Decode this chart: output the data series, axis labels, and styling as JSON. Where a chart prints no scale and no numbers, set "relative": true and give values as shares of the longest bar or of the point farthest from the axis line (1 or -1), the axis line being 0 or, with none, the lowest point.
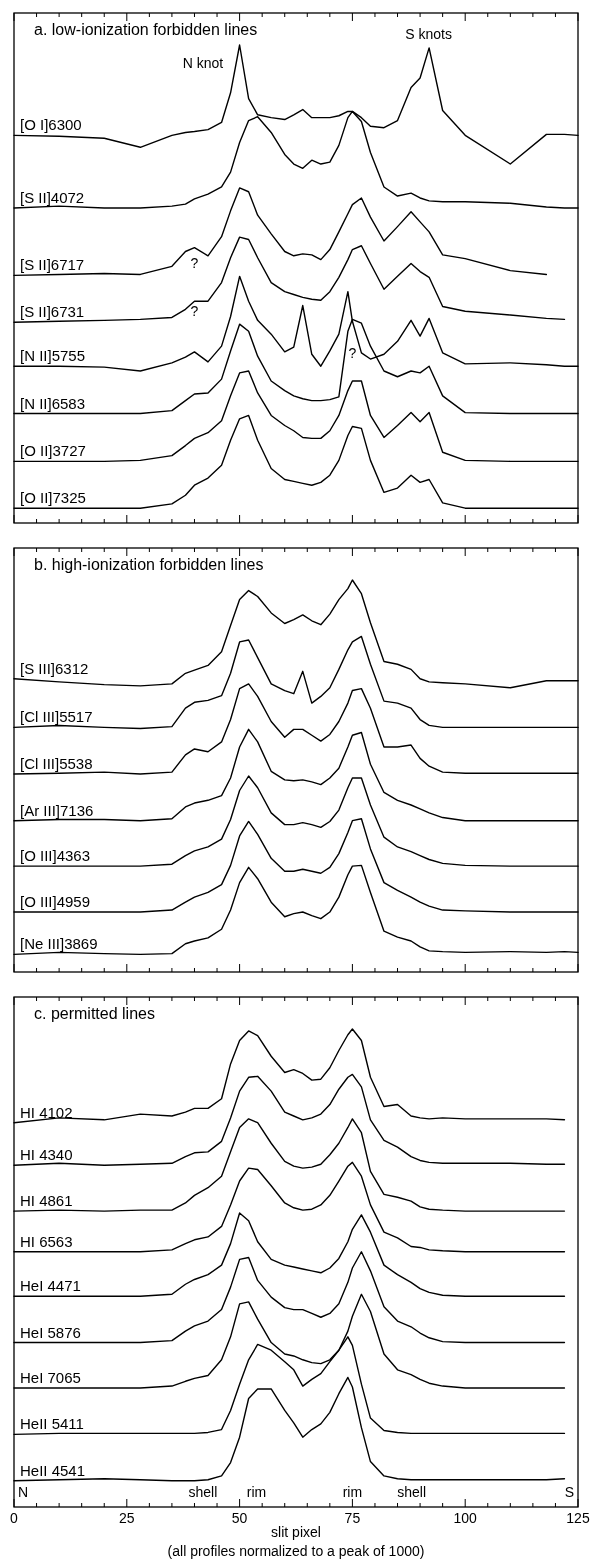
{
  "chart_data": [
    {
      "type": "line",
      "title": "a. low-ionization forbidden lines",
      "relative": true,
      "xlim": [
        0,
        125
      ],
      "xticks": [
        0,
        {
          "value": 5,
          "label": null
        },
        {
          "value": 10,
          "label": null
        },
        {
          "value": 15,
          "label": null
        },
        {
          "value": 20,
          "label": null
        },
        25,
        {
          "value": 30,
          "label": null
        },
        {
          "value": 35,
          "label": null
        },
        {
          "value": 40,
          "label": null
        },
        {
          "value": 45,
          "label": null
        },
        50,
        {
          "value": 55,
          "label": null
        },
        {
          "value": 60,
          "label": null
        },
        {
          "value": 65,
          "label": null
        },
        {
          "value": 70,
          "label": null
        },
        75,
        {
          "value": 80,
          "label": null
        },
        {
          "value": 85,
          "label": null
        },
        {
          "value": 90,
          "label": null
        },
        {
          "value": 95,
          "label": null
        },
        100,
        {
          "value": 105,
          "label": null
        },
        {
          "value": 110,
          "label": null
        },
        {
          "value": 115,
          "label": null
        },
        {
          "value": 120,
          "label": null
        },
        125
      ],
      "tick_labels": false,
      "x": [
        0,
        10,
        20,
        28,
        35,
        38,
        40,
        43,
        46,
        48,
        50,
        52,
        54,
        57,
        60,
        62,
        64,
        66,
        68,
        70,
        72,
        74,
        75,
        77,
        79,
        82,
        85,
        88,
        90,
        92,
        95,
        100,
        110,
        118,
        122,
        125
      ],
      "series": [
        {
          "name": "[O I]6300",
          "color": "#000000",
          "values": [
            0.811,
            0.809,
            0.805,
            0.786,
            0.811,
            0.817,
            0.819,
            0.823,
            0.838,
            0.9,
            1,
            0.888,
            0.854,
            0.848,
            0.844,
            0.854,
            0.865,
            0.848,
            0.848,
            0.848,
            0.852,
            0.861,
            0.861,
            0.848,
            0.83,
            0.827,
            0.842,
            0.911,
            0.931,
            0.994,
            0.863,
            0.811,
            0.751,
            0.813,
            0.813,
            0.811
          ]
        },
        {
          "name": "[S II]4072",
          "color": "#000000",
          "values": [
            0.659,
            0.663,
            0.659,
            0.659,
            0.663,
            0.667,
            0.678,
            0.688,
            0.703,
            0.734,
            0.796,
            0.842,
            0.85,
            0.817,
            0.771,
            0.751,
            0.742,
            0.759,
            0.751,
            0.755,
            0.79,
            0.848,
            0.861,
            0.84,
            0.775,
            0.703,
            0.684,
            0.69,
            0.68,
            0.674,
            0.672,
            0.672,
            0.669,
            0.661,
            0.659,
            0.659
          ]
        },
        {
          "name": "[S II]6717",
          "color": "#000000",
          "values": [
            0.518,
            0.52,
            0.522,
            0.52,
            0.537,
            0.568,
            0.576,
            0.559,
            0.599,
            0.653,
            0.701,
            0.693,
            0.644,
            0.605,
            0.568,
            0.559,
            0.563,
            0.561,
            0.551,
            0.572,
            0.609,
            0.647,
            0.666,
            0.68,
            0.64,
            0.59,
            0.62,
            0.651,
            0.63,
            0.609,
            0.561,
            0.553,
            0.528,
            0.52,
            null,
            null
          ]
        },
        {
          "name": "[S II]6731",
          "color": "#000000",
          "values": [
            0.42,
            0.422,
            0.424,
            0.426,
            0.43,
            0.447,
            0.464,
            0.464,
            0.503,
            0.555,
            0.598,
            0.593,
            0.555,
            0.503,
            0.484,
            0.478,
            0.472,
            0.468,
            0.466,
            0.484,
            0.514,
            0.551,
            0.572,
            0.58,
            0.543,
            0.489,
            0.516,
            0.543,
            0.526,
            0.514,
            0.453,
            0.443,
            0.435,
            0.428,
            0.426,
            null
          ]
        },
        {
          "name": "[N II]5755",
          "color": "#000000",
          "values": [
            0.328,
            0.328,
            0.326,
            0.318,
            0.335,
            0.347,
            0.358,
            0.337,
            0.37,
            0.432,
            0.516,
            0.464,
            0.424,
            0.395,
            0.358,
            0.368,
            0.455,
            0.353,
            0.328,
            0.36,
            0.395,
            0.484,
            0.422,
            0.356,
            0.343,
            0.353,
            0.38,
            0.424,
            0.391,
            0.428,
            0.356,
            0.333,
            0.335,
            0.331,
            0.328,
            0.328
          ]
        },
        {
          "name": "[N II]6583",
          "color": "#000000",
          "values": [
            0.229,
            0.229,
            0.229,
            0.229,
            0.235,
            0.256,
            0.27,
            0.272,
            0.301,
            0.36,
            0.416,
            0.401,
            0.349,
            0.297,
            0.277,
            0.266,
            0.26,
            0.256,
            0.256,
            0.258,
            0.264,
            0.401,
            0.426,
            0.418,
            0.37,
            0.318,
            0.306,
            0.318,
            0.314,
            0.328,
            0.266,
            0.231,
            0.229,
            0.229,
            0.229,
            0.229
          ]
        },
        {
          "name": "[O II]3727",
          "color": "#000000",
          "values": [
            0.129,
            0.129,
            0.129,
            0.131,
            0.141,
            0.162,
            0.177,
            0.189,
            0.214,
            0.266,
            0.314,
            0.318,
            0.272,
            0.225,
            0.204,
            0.193,
            0.179,
            0.177,
            0.177,
            0.193,
            0.225,
            0.277,
            0.297,
            0.297,
            0.225,
            0.179,
            0.204,
            0.231,
            0.212,
            0.231,
            0.148,
            0.131,
            0.129,
            0.129,
            0.129,
            0.129
          ]
        },
        {
          "name": "[O II]7325",
          "color": "#000000",
          "values": [
            0.031,
            0.031,
            0.031,
            0.031,
            0.04,
            0.058,
            0.079,
            0.094,
            0.121,
            0.173,
            0.218,
            0.225,
            0.173,
            0.114,
            0.091,
            0.087,
            0.083,
            0.079,
            0.085,
            0.1,
            0.131,
            0.183,
            0.202,
            0.198,
            0.131,
            0.064,
            0.073,
            0.1,
            0.085,
            0.091,
            0.042,
            0.031,
            0.031,
            0.031,
            0.031,
            0.031
          ]
        }
      ],
      "annotations": [
        "N knot",
        "S knots",
        "?",
        "?",
        "?"
      ]
    },
    {
      "type": "line",
      "title": "b. high-ionization forbidden lines",
      "relative": true,
      "xlim": [
        0,
        125
      ],
      "xticks": [
        0,
        {
          "value": 5,
          "label": null
        },
        {
          "value": 10,
          "label": null
        },
        {
          "value": 15,
          "label": null
        },
        {
          "value": 20,
          "label": null
        },
        25,
        {
          "value": 30,
          "label": null
        },
        {
          "value": 35,
          "label": null
        },
        {
          "value": 40,
          "label": null
        },
        {
          "value": 45,
          "label": null
        },
        50,
        {
          "value": 55,
          "label": null
        },
        {
          "value": 60,
          "label": null
        },
        {
          "value": 65,
          "label": null
        },
        {
          "value": 70,
          "label": null
        },
        75,
        {
          "value": 80,
          "label": null
        },
        {
          "value": 85,
          "label": null
        },
        {
          "value": 90,
          "label": null
        },
        {
          "value": 95,
          "label": null
        },
        100,
        {
          "value": 105,
          "label": null
        },
        {
          "value": 110,
          "label": null
        },
        {
          "value": 115,
          "label": null
        },
        {
          "value": 120,
          "label": null
        },
        125
      ],
      "tick_labels": false,
      "x": [
        0,
        10,
        20,
        28,
        35,
        38,
        40,
        43,
        46,
        48,
        50,
        52,
        54,
        57,
        60,
        62,
        64,
        66,
        68,
        70,
        72,
        74,
        75,
        77,
        79,
        82,
        85,
        88,
        90,
        92,
        95,
        100,
        110,
        118,
        122,
        125
      ],
      "series": [
        {
          "name": "[S III]6312",
          "color": "#000000",
          "values": [
            0.748,
            0.74,
            0.733,
            0.73,
            0.735,
            0.762,
            0.77,
            0.782,
            0.817,
            0.884,
            0.95,
            0.973,
            0.958,
            0.916,
            0.889,
            0.899,
            0.911,
            0.896,
            0.886,
            0.913,
            0.95,
            0.978,
            1,
            0.965,
            0.891,
            0.792,
            0.785,
            0.772,
            0.748,
            0.74,
            0.738,
            0.735,
            0.725,
            0.743,
            0.743,
            0.743
          ]
        },
        {
          "name": "[Cl III]5517",
          "color": "#000000",
          "values": [
            0.624,
            0.629,
            0.624,
            0.621,
            0.626,
            0.673,
            0.688,
            0.693,
            0.705,
            0.762,
            0.842,
            0.847,
            0.802,
            0.735,
            0.718,
            0.71,
            0.767,
            0.686,
            0.703,
            0.725,
            0.772,
            0.822,
            0.842,
            0.856,
            0.785,
            0.691,
            0.686,
            0.673,
            0.644,
            0.629,
            0.624,
            0.624,
            0.624,
            0.624,
            0.624,
            0.624
          ]
        },
        {
          "name": "[Cl III]5538",
          "color": "#000000",
          "values": [
            0.505,
            0.507,
            0.51,
            0.505,
            0.51,
            0.554,
            0.569,
            0.562,
            0.587,
            0.644,
            0.723,
            0.735,
            0.703,
            0.639,
            0.599,
            0.619,
            0.619,
            0.604,
            0.589,
            0.606,
            0.639,
            0.686,
            0.718,
            0.723,
            0.673,
            0.574,
            0.574,
            0.579,
            0.545,
            0.525,
            0.51,
            0.507,
            0.507,
            0.507,
            0.507,
            0.507
          ]
        },
        {
          "name": "[Ar III]7136",
          "color": "#000000",
          "values": [
            0.386,
            0.389,
            0.389,
            0.386,
            0.391,
            0.421,
            0.431,
            0.438,
            0.45,
            0.495,
            0.574,
            0.619,
            0.587,
            0.512,
            0.49,
            0.488,
            0.49,
            0.485,
            0.478,
            0.495,
            0.52,
            0.574,
            0.604,
            0.611,
            0.53,
            0.458,
            0.438,
            0.426,
            0.416,
            0.406,
            0.394,
            0.386,
            0.386,
            0.386,
            0.386,
            0.386
          ]
        },
        {
          "name": "[O III]4363",
          "color": "#000000",
          "values": [
            0.27,
            0.27,
            0.27,
            0.27,
            0.275,
            0.297,
            0.309,
            0.319,
            0.339,
            0.389,
            0.463,
            0.5,
            0.47,
            0.406,
            0.376,
            0.376,
            0.381,
            0.376,
            0.369,
            0.384,
            0.413,
            0.47,
            0.495,
            0.495,
            0.426,
            0.344,
            0.319,
            0.307,
            0.297,
            0.287,
            0.277,
            0.272,
            0.27,
            0.27,
            0.27,
            0.27
          ]
        },
        {
          "name": "[O III]4959",
          "color": "#000000",
          "values": [
            0.153,
            0.153,
            0.153,
            0.153,
            0.158,
            0.178,
            0.191,
            0.203,
            0.223,
            0.272,
            0.347,
            0.384,
            0.351,
            0.29,
            0.257,
            0.257,
            0.262,
            0.257,
            0.252,
            0.267,
            0.302,
            0.356,
            0.386,
            0.391,
            0.314,
            0.228,
            0.208,
            0.191,
            0.178,
            0.168,
            0.158,
            0.156,
            0.153,
            0.153,
            0.153,
            0.153
          ]
        },
        {
          "name": "[Ne III]3869",
          "color": "#000000",
          "values": [
            0.045,
            0.05,
            0.047,
            0.045,
            0.047,
            0.072,
            0.079,
            0.087,
            0.109,
            0.158,
            0.228,
            0.267,
            0.238,
            0.178,
            0.141,
            0.149,
            0.153,
            0.144,
            0.136,
            0.153,
            0.191,
            0.248,
            0.27,
            0.272,
            0.203,
            0.104,
            0.089,
            0.079,
            0.064,
            0.054,
            0.052,
            0.05,
            0.052,
            0.05,
            0.052,
            0.05
          ]
        }
      ]
    },
    {
      "type": "line",
      "title": "c. permitted lines",
      "xlabel": "slit pixel",
      "relative": true,
      "xlim": [
        0,
        125
      ],
      "xticks": [
        0,
        {
          "value": 5,
          "label": null
        },
        {
          "value": 10,
          "label": null
        },
        {
          "value": 15,
          "label": null
        },
        {
          "value": 20,
          "label": null
        },
        25,
        {
          "value": 30,
          "label": null
        },
        {
          "value": 35,
          "label": null
        },
        {
          "value": 40,
          "label": null
        },
        {
          "value": 45,
          "label": null
        },
        50,
        {
          "value": 55,
          "label": null
        },
        {
          "value": 60,
          "label": null
        },
        {
          "value": 65,
          "label": null
        },
        {
          "value": 70,
          "label": null
        },
        75,
        {
          "value": 80,
          "label": null
        },
        {
          "value": 85,
          "label": null
        },
        {
          "value": 90,
          "label": null
        },
        {
          "value": 95,
          "label": null
        },
        100,
        {
          "value": 105,
          "label": null
        },
        {
          "value": 110,
          "label": null
        },
        {
          "value": 115,
          "label": null
        },
        {
          "value": 120,
          "label": null
        },
        125
      ],
      "tick_labels": "x",
      "x": [
        0,
        10,
        20,
        28,
        35,
        38,
        40,
        43,
        46,
        48,
        50,
        52,
        54,
        57,
        60,
        62,
        64,
        66,
        68,
        70,
        72,
        74,
        75,
        77,
        79,
        82,
        85,
        88,
        90,
        92,
        95,
        100,
        110,
        118,
        122
      ],
      "series": [
        {
          "name": "HI 4102",
          "color": "#000000",
          "values": [
            0.804,
            0.814,
            0.81,
            0.822,
            0.818,
            0.826,
            0.834,
            0.834,
            0.854,
            0.927,
            0.976,
            0.996,
            0.986,
            0.943,
            0.909,
            0.915,
            0.907,
            0.893,
            0.895,
            0.919,
            0.955,
            0.988,
            1,
            0.976,
            0.899,
            0.838,
            0.842,
            0.818,
            0.814,
            0.812,
            0.814,
            0.812,
            0.812,
            0.812,
            0.81
          ]
        },
        {
          "name": "HI 4340",
          "color": "#000000",
          "values": [
            0.715,
            0.719,
            0.715,
            0.717,
            0.719,
            0.733,
            0.741,
            0.743,
            0.765,
            0.814,
            0.87,
            0.899,
            0.901,
            0.87,
            0.826,
            0.818,
            0.81,
            0.814,
            0.822,
            0.842,
            0.874,
            0.899,
            0.905,
            0.879,
            0.81,
            0.767,
            0.753,
            0.733,
            0.725,
            0.721,
            0.719,
            0.719,
            0.719,
            0.717,
            0.717
          ]
        },
        {
          "name": "HI 4861",
          "color": "#000000",
          "values": [
            0.619,
            0.621,
            0.619,
            0.621,
            0.621,
            0.636,
            0.652,
            0.668,
            0.692,
            0.743,
            0.794,
            0.812,
            0.804,
            0.761,
            0.723,
            0.713,
            0.709,
            0.711,
            0.717,
            0.737,
            0.761,
            0.794,
            0.812,
            0.783,
            0.702,
            0.654,
            0.648,
            0.64,
            0.628,
            0.623,
            0.621,
            0.619,
            0.619,
            0.619,
            0.619
          ]
        },
        {
          "name": "HI 6563",
          "color": "#000000",
          "values": [
            0.534,
            0.534,
            0.534,
            0.534,
            0.538,
            0.551,
            0.559,
            0.565,
            0.587,
            0.632,
            0.682,
            0.709,
            0.706,
            0.672,
            0.636,
            0.626,
            0.621,
            0.623,
            0.632,
            0.652,
            0.682,
            0.713,
            0.721,
            0.692,
            0.632,
            0.575,
            0.563,
            0.545,
            0.543,
            0.538,
            0.536,
            0.534,
            0.534,
            0.534,
            0.534
          ]
        },
        {
          "name": "HeI 4471",
          "color": "#000000",
          "values": [
            0.441,
            0.441,
            0.441,
            0.441,
            0.445,
            0.466,
            0.476,
            0.486,
            0.506,
            0.551,
            0.615,
            0.599,
            0.555,
            0.518,
            0.506,
            0.502,
            0.498,
            0.494,
            0.49,
            0.5,
            0.52,
            0.555,
            0.581,
            0.611,
            0.575,
            0.506,
            0.486,
            0.47,
            0.457,
            0.449,
            0.443,
            0.441,
            0.441,
            0.441,
            0.441
          ]
        },
        {
          "name": "HeI 5876",
          "color": "#000000",
          "values": [
            0.344,
            0.344,
            0.344,
            0.344,
            0.348,
            0.368,
            0.379,
            0.389,
            0.413,
            0.46,
            0.518,
            0.522,
            0.474,
            0.439,
            0.417,
            0.413,
            0.413,
            0.405,
            0.397,
            0.405,
            0.425,
            0.47,
            0.5,
            0.534,
            0.494,
            0.419,
            0.389,
            0.377,
            0.364,
            0.354,
            0.346,
            0.344,
            0.344,
            0.344,
            0.344
          ]
        },
        {
          "name": "HeI 7065",
          "color": "#000000",
          "values": [
            0.249,
            0.249,
            0.249,
            0.249,
            0.253,
            0.263,
            0.269,
            0.275,
            0.308,
            0.356,
            0.425,
            0.429,
            0.393,
            0.344,
            0.32,
            0.316,
            0.308,
            0.302,
            0.3,
            0.308,
            0.328,
            0.368,
            0.399,
            0.445,
            0.409,
            0.32,
            0.287,
            0.277,
            0.267,
            0.259,
            0.253,
            0.249,
            0.249,
            0.249,
            0.249
          ]
        },
        {
          "name": "HeII 5411",
          "color": "#000000",
          "values": [
            0.152,
            0.154,
            0.154,
            0.154,
            0.154,
            0.154,
            0.154,
            0.156,
            0.162,
            0.202,
            0.257,
            0.308,
            0.34,
            0.328,
            0.304,
            0.287,
            0.253,
            0.267,
            0.279,
            0.304,
            0.328,
            0.356,
            0.338,
            0.257,
            0.186,
            0.16,
            0.156,
            0.154,
            0.154,
            0.154,
            0.154,
            0.154,
            0.154,
            0.154,
            0.154
          ]
        },
        {
          "name": "HeII 4541",
          "color": "#000000",
          "values": [
            0.055,
            0.057,
            0.059,
            0.057,
            0.055,
            0.055,
            0.055,
            0.057,
            0.065,
            0.093,
            0.146,
            0.227,
            0.247,
            0.247,
            0.202,
            0.176,
            0.146,
            0.162,
            0.174,
            0.198,
            0.237,
            0.271,
            0.251,
            0.166,
            0.095,
            0.065,
            0.059,
            0.057,
            0.057,
            0.057,
            0.057,
            0.057,
            0.057,
            0.057,
            0.059
          ]
        }
      ],
      "annotations": [
        "N",
        "shell",
        "rim",
        "rim",
        "shell",
        "S",
        "(all profiles normalized to a peak of 1000)"
      ]
    }
  ]
}
